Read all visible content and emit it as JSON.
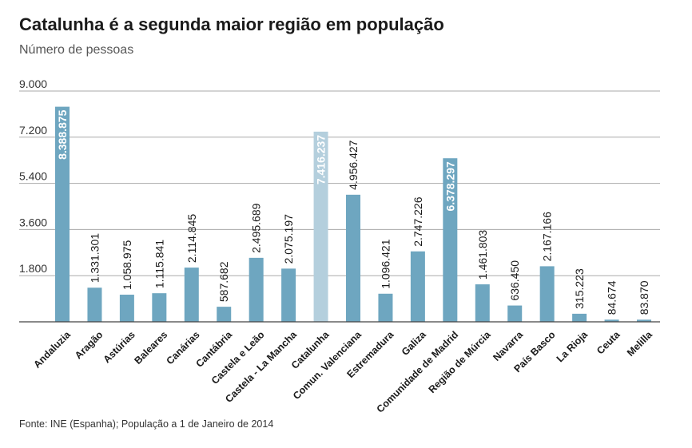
{
  "title": "Catalunha é a segunda maior região em população",
  "subtitle": "Número de pessoas",
  "source": "Fonte: INE (Espanha); População a 1 de Janeiro de 2014",
  "colors": {
    "bar": "#6ea6c0",
    "highlight": "#b4cfdd",
    "grid": "#aaaaaa",
    "baseline": "#444444",
    "label_dark": "#1a1a1a",
    "label_light": "#ffffff"
  },
  "chart_data": {
    "type": "bar",
    "title": "Catalunha é a segunda maior região em população",
    "subtitle": "Número de pessoas",
    "ylim": [
      0,
      9000
    ],
    "yticks": [
      1800,
      3600,
      5400,
      7200,
      9000
    ],
    "ytick_labels": [
      "1.800",
      "3.600",
      "5.400",
      "7.200",
      "9.000"
    ],
    "grid": true,
    "highlight": "Catalunha",
    "categories": [
      "Andaluzia",
      "Aragão",
      "Astúrias",
      "Baleares",
      "Canárias",
      "Cantábria",
      "Castela e Leão",
      "Castela - La Mancha",
      "Catalunha",
      "Comun. Valenciana",
      "Estremadura",
      "Galiza",
      "Comunidade de Madrid",
      "Região de Múrcia",
      "Navarra",
      "País Basco",
      "La Rioja",
      "Ceuta",
      "Melilla"
    ],
    "values": [
      8388.875,
      1331.301,
      1058.975,
      1115.841,
      2114.845,
      587.682,
      2495.689,
      2075.197,
      7416.237,
      4956.427,
      1096.421,
      2747.226,
      6378.297,
      1461.803,
      636.45,
      2167.166,
      315.223,
      84.674,
      83.87
    ],
    "value_labels": [
      "8.388.875",
      "1.331.301",
      "1.058.975",
      "1.115.841",
      "2.114.845",
      "587.682",
      "2.495.689",
      "2.075.197",
      "7.416.237",
      "4.956.427",
      "1.096.421",
      "2.747.226",
      "6.378.297",
      "1.461.803",
      "636.450",
      "2.167.166",
      "315.223",
      "84.674",
      "83.870"
    ],
    "inside_labels": [
      "Andaluzia",
      "Catalunha",
      "Comunidade de Madrid"
    ]
  }
}
